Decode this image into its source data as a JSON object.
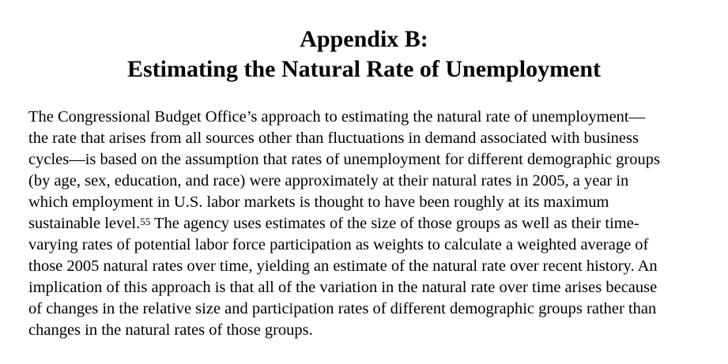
{
  "document": {
    "heading_line1": "Appendix B:",
    "heading_line2": "Estimating the Natural Rate of Unemployment",
    "paragraph": {
      "lines": [
        "The Congressional Budget Office’s approach to estimating the natural rate of unemployment—",
        "the rate that arises from all sources other than fluctuations in demand associated with business",
        "cycles—is based on the assumption that rates of unemployment for different demographic groups",
        "(by age, sex, education, and race) were approximately at their natural rates in 2005, a year in",
        "which employment in U.S. labor markets is thought to have been roughly at its maximum",
        "sustainable level.",
        "The agency uses estimates of the size of those groups as well as their time-",
        "varying rates of potential labor force participation as weights to calculate a weighted average of",
        "those 2005 natural rates over time, yielding an estimate of the natural rate over recent history. An",
        "implication of this approach is that all of the variation in the natural rate over time arises because",
        "of changes in the relative size and participation rates of different demographic groups rather than",
        "changes in the natural rates of those groups."
      ],
      "footnote_ref": "55"
    }
  }
}
